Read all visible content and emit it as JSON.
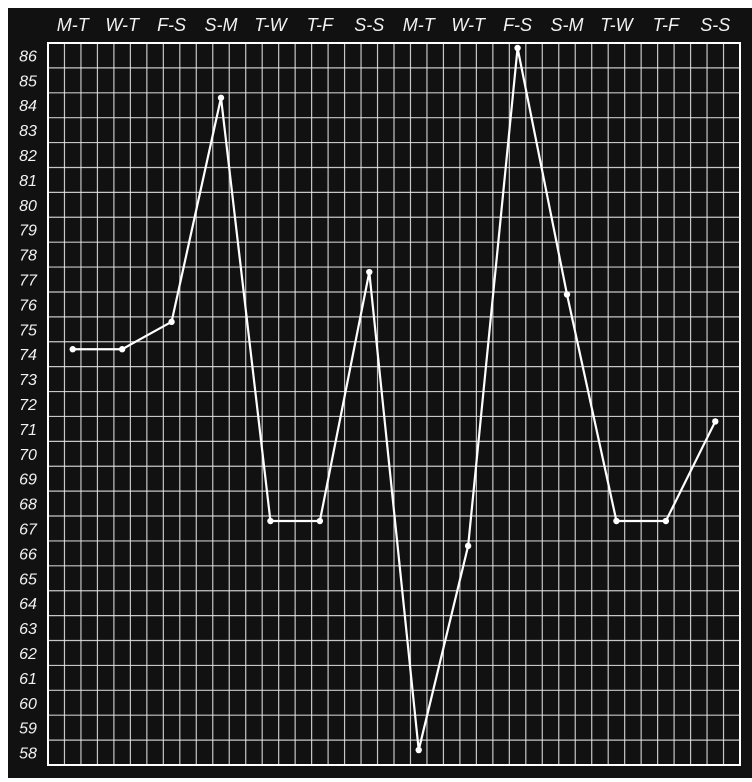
{
  "chart_data": {
    "type": "line",
    "title": "",
    "xlabel": "",
    "ylabel": "",
    "grid": true,
    "categories": [
      "M-T",
      "W-T",
      "F-S",
      "S-M",
      "T-W",
      "T-F",
      "S-S",
      "M-T",
      "W-T",
      "F-S",
      "S-M",
      "T-W",
      "T-F",
      "S-S"
    ],
    "series": [
      {
        "values": [
          74.2,
          74.2,
          75.3,
          84.3,
          67.3,
          67.3,
          77.3,
          58.1,
          66.3,
          86.3,
          76.4,
          67.3,
          67.3,
          71.3
        ]
      }
    ],
    "ylim": [
      58,
      86
    ],
    "yticks": [
      58,
      59,
      60,
      61,
      62,
      63,
      64,
      65,
      66,
      67,
      68,
      69,
      70,
      71,
      72,
      73,
      74,
      75,
      76,
      77,
      78,
      79,
      80,
      81,
      82,
      83,
      84,
      85,
      86
    ],
    "colors": {
      "background": "#111111",
      "grid": "#e6e6e6",
      "line": "#ffffff",
      "frame": "#ffffff"
    }
  }
}
